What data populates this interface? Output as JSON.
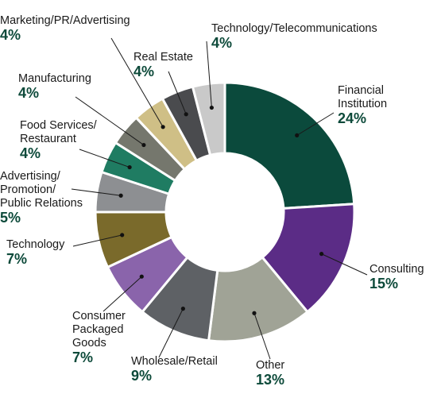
{
  "chart_data": {
    "type": "pie",
    "variant": "donut",
    "legend": "none",
    "start": "top, clockwise",
    "slices": [
      {
        "label_lines": [
          "Financial",
          "Institution"
        ],
        "value": 24,
        "value_label": "24%",
        "color": "#0b4a3c"
      },
      {
        "label_lines": [
          "Consulting"
        ],
        "value": 15,
        "value_label": "15%",
        "color": "#5b2c86"
      },
      {
        "label_lines": [
          "Other"
        ],
        "value": 13,
        "value_label": "13%",
        "color": "#a0a396"
      },
      {
        "label_lines": [
          "Wholesale/Retail"
        ],
        "value": 9,
        "value_label": "9%",
        "color": "#5e6165"
      },
      {
        "label_lines": [
          "Consumer",
          "Packaged",
          "Goods"
        ],
        "value": 7,
        "value_label": "7%",
        "color": "#8a64ab"
      },
      {
        "label_lines": [
          "Technology"
        ],
        "value": 7,
        "value_label": "7%",
        "color": "#7a6a2b"
      },
      {
        "label_lines": [
          "Advertising/",
          "Promotion/",
          "Public Relations"
        ],
        "value": 5,
        "value_label": "5%",
        "color": "#8d8f92"
      },
      {
        "label_lines": [
          "Food Services/",
          "Restaurant"
        ],
        "value": 4,
        "value_label": "4%",
        "color": "#1f7c62"
      },
      {
        "label_lines": [
          "Manufacturing"
        ],
        "value": 4,
        "value_label": "4%",
        "color": "#75776d"
      },
      {
        "label_lines": [
          "Marketing/PR/Advertising"
        ],
        "value": 4,
        "value_label": "4%",
        "color": "#cfbf86"
      },
      {
        "label_lines": [
          "Real Estate"
        ],
        "value": 4,
        "value_label": "4%",
        "color": "#4a4b4e"
      },
      {
        "label_lines": [
          "Technology/Telecommunications"
        ],
        "value": 4,
        "value_label": "4%",
        "color": "#c9c9c9"
      }
    ],
    "label_color": "#1a1a1a",
    "value_color": "#0d4a3a"
  }
}
